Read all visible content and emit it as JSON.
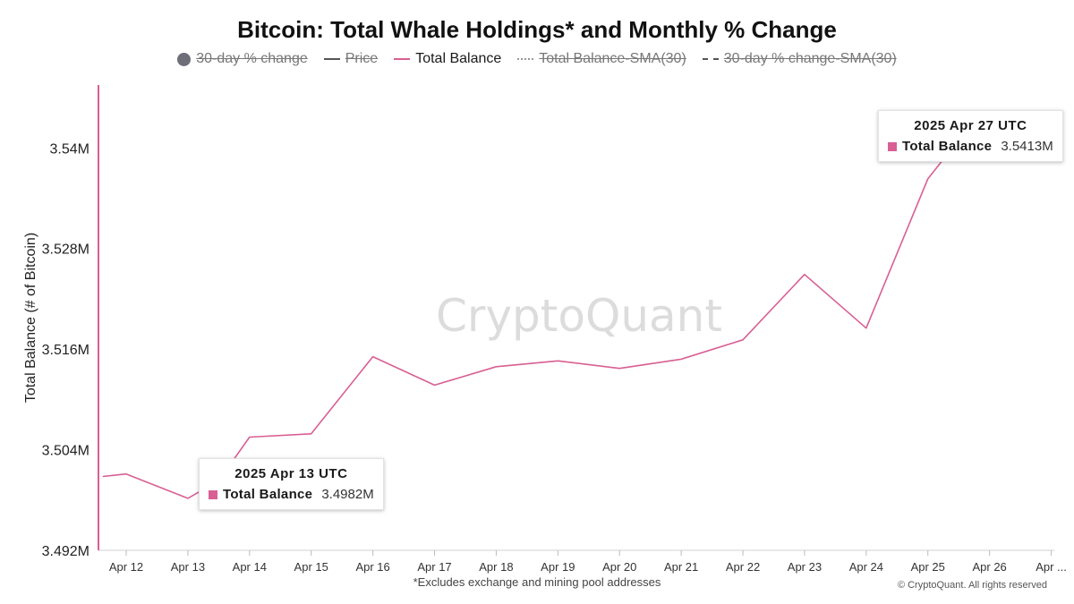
{
  "title": "Bitcoin: Total Whale Holdings* and Monthly % Change",
  "legend": [
    {
      "label": "30-day % change",
      "marker": "dot",
      "color": "#6e6e78",
      "enabled": false
    },
    {
      "label": "Price",
      "marker": "line",
      "color": "#555555",
      "enabled": false
    },
    {
      "label": "Total Balance",
      "marker": "line",
      "color": "#d85f93",
      "enabled": true
    },
    {
      "label": "Total Balance-SMA(30)",
      "marker": "dotted",
      "color": "#999999",
      "enabled": false
    },
    {
      "label": "30-day % change-SMA(30)",
      "marker": "dashed",
      "color": "#555555",
      "enabled": false
    }
  ],
  "watermark": "CryptoQuant",
  "footnote": "*Excludes exchange and mining pool addresses",
  "copyright": "© CryptoQuant. All rights reserved",
  "tooltips": [
    {
      "date": "2025 Apr 13 UTC",
      "series": "Total Balance",
      "value": "3.4982M",
      "color": "#d85f93"
    },
    {
      "date": "2025 Apr 27 UTC",
      "series": "Total Balance",
      "value": "3.5413M",
      "color": "#d85f93"
    }
  ],
  "chart_data": {
    "type": "line",
    "title": "Bitcoin: Total Whale Holdings* and Monthly % Change",
    "ylabel": "Total Balance (# of Bitcoin)",
    "xlabel": "",
    "ylim": [
      3.492,
      3.5475
    ],
    "x_ticks": [
      "Apr 12",
      "Apr 13",
      "Apr 14",
      "Apr 15",
      "Apr 16",
      "Apr 17",
      "Apr 18",
      "Apr 19",
      "Apr 20",
      "Apr 21",
      "Apr 22",
      "Apr 23",
      "Apr 24",
      "Apr 25",
      "Apr 26",
      "Apr ..."
    ],
    "x_tick_values": [
      12,
      13,
      14,
      15,
      16,
      17,
      18,
      19,
      20,
      21,
      22,
      23,
      24,
      25,
      26,
      27
    ],
    "y_ticks": [
      3.492,
      3.504,
      3.516,
      3.528,
      3.54
    ],
    "y_tick_labels": [
      "3.492M",
      "3.504M",
      "3.516M",
      "3.528M",
      "3.54M"
    ],
    "grid": false,
    "legend_position": "top",
    "series": [
      {
        "name": "Total Balance",
        "color": "#d85f93",
        "x": [
          11.62,
          12,
          13,
          13.5,
          14,
          15,
          16,
          17,
          18,
          19,
          20,
          21,
          22,
          23,
          24,
          25,
          25.45,
          26,
          26.5,
          27
        ],
        "y": [
          3.5008,
          3.5011,
          3.4982,
          3.5003,
          3.5055,
          3.5059,
          3.5151,
          3.5117,
          3.5139,
          3.5146,
          3.5137,
          3.5148,
          3.5171,
          3.5249,
          3.5185,
          3.5363,
          3.5405,
          3.5413,
          3.5413,
          3.5413
        ]
      }
    ],
    "series_units": "M BTC"
  }
}
